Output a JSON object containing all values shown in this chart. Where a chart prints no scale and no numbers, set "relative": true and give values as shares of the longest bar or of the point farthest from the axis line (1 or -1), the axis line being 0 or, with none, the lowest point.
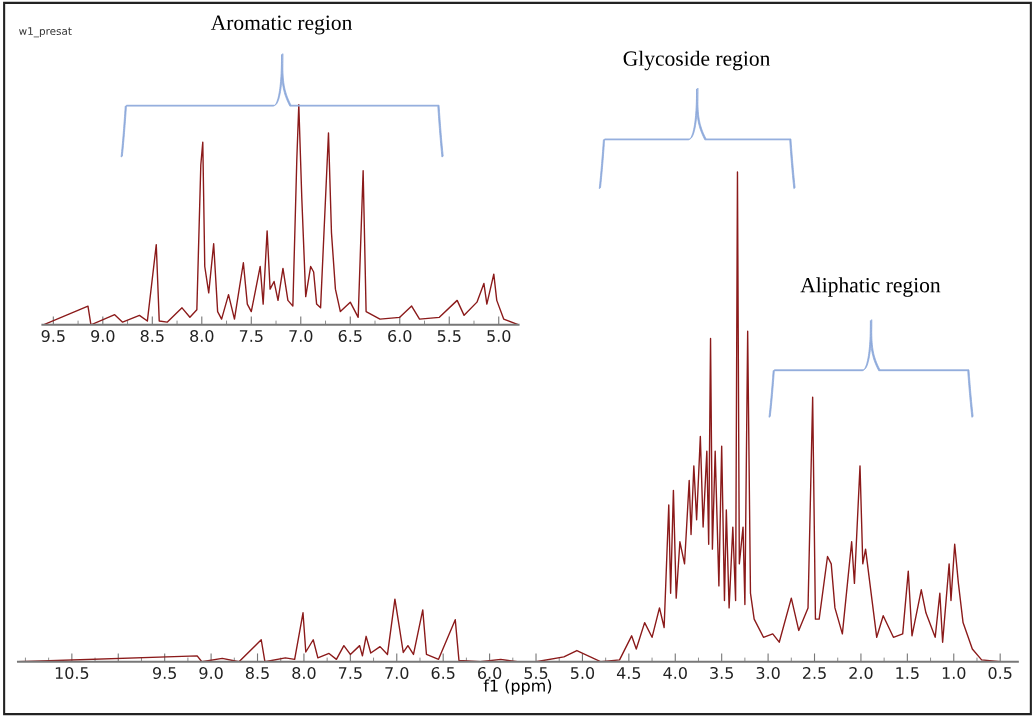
{
  "chart_data": [
    {
      "type": "line",
      "relative": true,
      "xlabel": "f1 (ppm)",
      "xlim": [
        11.08,
        0.31
      ],
      "xticks": [
        10.5,
        {
          "value": 10,
          "label": null
        },
        9.5,
        {
          "value": 9,
          "label": "9.0"
        },
        8.5,
        {
          "value": 8,
          "label": "8.0"
        },
        7.5,
        {
          "value": 7,
          "label": "7.0"
        },
        6.5,
        {
          "value": 6,
          "label": "6.0"
        },
        5.5,
        {
          "value": 5,
          "label": "5.0"
        },
        4.5,
        {
          "value": 4,
          "label": "4.0"
        },
        3.5,
        {
          "value": 3,
          "label": "3.0"
        },
        2.5,
        {
          "value": 2,
          "label": "2.0"
        },
        1.5,
        {
          "value": 1,
          "label": "1.0"
        },
        0.5
      ],
      "annotations": [
        "w1_presat",
        "Glycoside region",
        "Aliphatic region"
      ],
      "marker": "none",
      "line_style": "solid",
      "grid": false,
      "legend": false,
      "series": [
        {
          "color": "#8b1a1a",
          "x": [
            11.08,
            9.15,
            9.1,
            8.88,
            8.7,
            8.46,
            8.42,
            8.2,
            8.1,
            8.01,
            7.98,
            7.9,
            7.85,
            7.73,
            7.65,
            7.57,
            7.5,
            7.4,
            7.37,
            7.33,
            7.28,
            7.18,
            7.1,
            7.02,
            6.98,
            6.93,
            6.88,
            6.82,
            6.72,
            6.68,
            6.55,
            6.37,
            6.33,
            6.1,
            5.88,
            5.7,
            5.5,
            5.2,
            5.06,
            4.8,
            4.6,
            4.47,
            4.42,
            4.33,
            4.25,
            4.17,
            4.12,
            4.07,
            4.05,
            4.02,
            3.99,
            3.95,
            3.9,
            3.85,
            3.83,
            3.8,
            3.77,
            3.73,
            3.7,
            3.66,
            3.64,
            3.62,
            3.6,
            3.57,
            3.53,
            3.5,
            3.47,
            3.45,
            3.42,
            3.38,
            3.35,
            3.33,
            3.31,
            3.27,
            3.25,
            3.22,
            3.19,
            3.15,
            3.05,
            2.95,
            2.88,
            2.75,
            2.67,
            2.57,
            2.52,
            2.49,
            2.45,
            2.36,
            2.32,
            2.28,
            2.2,
            2.1,
            2.07,
            2.01,
            1.98,
            1.95,
            1.88,
            1.83,
            1.76,
            1.65,
            1.55,
            1.49,
            1.45,
            1.35,
            1.3,
            1.2,
            1.15,
            1.12,
            1.05,
            1.03,
            0.99,
            0.95,
            0.9,
            0.8,
            0.7,
            0.5,
            0.31
          ],
          "values": [
            0,
            0.012,
            0,
            0.007,
            0,
            0.045,
            0,
            0.008,
            0.005,
            0.1,
            0.02,
            0.045,
            0.008,
            0.017,
            0.005,
            0.033,
            0.015,
            0.033,
            0.012,
            0.052,
            0.018,
            0.031,
            0.015,
            0.128,
            0.08,
            0.019,
            0.033,
            0.015,
            0.106,
            0.015,
            0.005,
            0.086,
            0.003,
            0,
            0.005,
            0,
            0,
            0.01,
            0.023,
            0,
            0.004,
            0.053,
            0.026,
            0.08,
            0.05,
            0.11,
            0.07,
            0.32,
            0.14,
            0.35,
            0.13,
            0.245,
            0.2,
            0.37,
            0.26,
            0.4,
            0.29,
            0.46,
            0.275,
            0.43,
            0.24,
            0.66,
            0.23,
            0.43,
            0.155,
            0.44,
            0.125,
            0.31,
            0.11,
            0.275,
            0.125,
            1.0,
            0.2,
            0.275,
            0.117,
            0.675,
            0.14,
            0.087,
            0.05,
            0.057,
            0.04,
            0.13,
            0.064,
            0.11,
            0.54,
            0.087,
            0.087,
            0.215,
            0.2,
            0.11,
            0.057,
            0.245,
            0.16,
            0.4,
            0.2,
            0.23,
            0.125,
            0.05,
            0.094,
            0.05,
            0.057,
            0.185,
            0.053,
            0.147,
            0.1,
            0.05,
            0.14,
            0.04,
            0.2,
            0.125,
            0.24,
            0.16,
            0.08,
            0.026,
            0.004,
            0,
            0
          ]
        }
      ]
    },
    {
      "type": "line",
      "relative": true,
      "xlim": [
        9.61,
        4.8
      ],
      "xticks": [
        9.5,
        {
          "value": 9,
          "label": "9.0"
        },
        8.5,
        {
          "value": 8,
          "label": "8.0"
        },
        7.5,
        {
          "value": 7,
          "label": "7.0"
        },
        6.5,
        {
          "value": 6,
          "label": "6.0"
        },
        5.5,
        {
          "value": 5,
          "label": "5.0"
        }
      ],
      "annotations": [
        "Aromatic region"
      ],
      "marker": "none",
      "line_style": "solid",
      "grid": false,
      "legend": false,
      "series": [
        {
          "color": "#8b1a1a",
          "x": [
            9.6,
            9.15,
            9.12,
            8.88,
            8.8,
            8.63,
            8.55,
            8.46,
            8.43,
            8.35,
            8.2,
            8.12,
            8.05,
            8.01,
            7.99,
            7.97,
            7.93,
            7.88,
            7.84,
            7.8,
            7.73,
            7.67,
            7.58,
            7.54,
            7.5,
            7.41,
            7.38,
            7.34,
            7.31,
            7.27,
            7.23,
            7.18,
            7.13,
            7.08,
            7.04,
            7.02,
            6.99,
            6.95,
            6.9,
            6.87,
            6.84,
            6.8,
            6.72,
            6.69,
            6.65,
            6.6,
            6.5,
            6.42,
            6.37,
            6.34,
            6.2,
            6.0,
            5.88,
            5.8,
            5.6,
            5.42,
            5.35,
            5.22,
            5.15,
            5.12,
            5.05,
            5.02,
            4.95,
            4.8
          ],
          "values": [
            0,
            0.085,
            0,
            0.046,
            0.012,
            0.043,
            0.017,
            0.364,
            0.017,
            0.012,
            0.077,
            0.034,
            0.068,
            0.726,
            0.83,
            0.265,
            0.145,
            0.368,
            0.06,
            0.026,
            0.137,
            0.026,
            0.282,
            0.094,
            0.06,
            0.265,
            0.094,
            0.427,
            0.162,
            0.197,
            0.111,
            0.256,
            0.111,
            0.085,
            0.752,
            1.0,
            0.58,
            0.128,
            0.265,
            0.24,
            0.094,
            0.077,
            0.872,
            0.419,
            0.162,
            0.06,
            0.103,
            0.034,
            0.7,
            0.06,
            0.026,
            0.034,
            0.085,
            0.026,
            0.034,
            0.111,
            0.043,
            0.103,
            0.188,
            0.094,
            0.23,
            0.111,
            0.026,
            0
          ]
        }
      ]
    }
  ]
}
